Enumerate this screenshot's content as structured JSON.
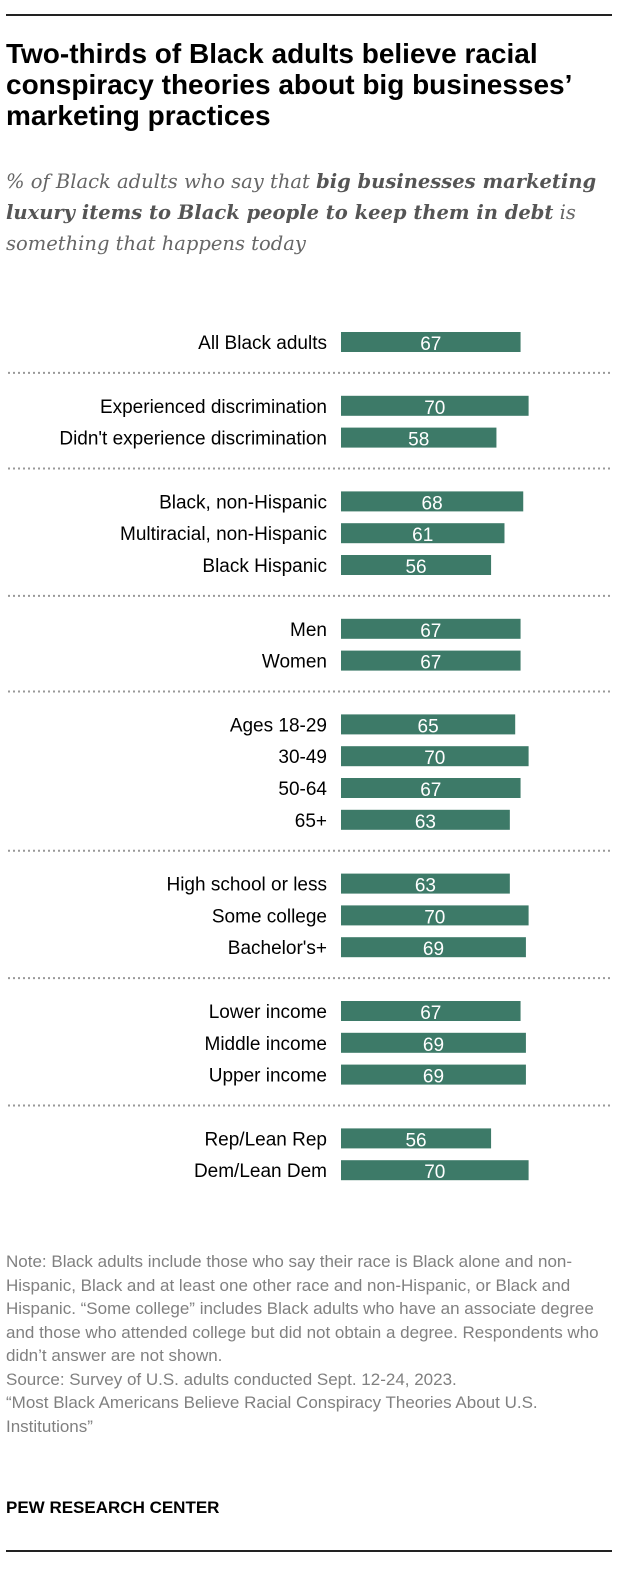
{
  "title": "Two-thirds of Black adults believe racial conspiracy theories about big businesses’ marketing practices",
  "subtitle": {
    "part1": "% of Black adults who say that ",
    "bold": "big businesses marketing luxury items to Black people to keep them in debt",
    "part2": " is something that happens today"
  },
  "colors": {
    "bar": "#3d7a68",
    "divider": "#999999"
  },
  "chart_data": {
    "type": "bar",
    "orientation": "horizontal",
    "xlim": [
      0,
      100
    ],
    "groups": [
      {
        "rows": [
          {
            "label": "All Black adults",
            "value": 67
          }
        ]
      },
      {
        "rows": [
          {
            "label": "Experienced discrimination",
            "value": 70
          },
          {
            "label": "Didn't experience discrimination",
            "value": 58
          }
        ]
      },
      {
        "rows": [
          {
            "label": "Black, non-Hispanic",
            "value": 68
          },
          {
            "label": "Multiracial, non-Hispanic",
            "value": 61
          },
          {
            "label": "Black Hispanic",
            "value": 56
          }
        ]
      },
      {
        "rows": [
          {
            "label": "Men",
            "value": 67
          },
          {
            "label": "Women",
            "value": 67
          }
        ]
      },
      {
        "rows": [
          {
            "label": "Ages 18-29",
            "value": 65
          },
          {
            "label": "30-49",
            "value": 70
          },
          {
            "label": "50-64",
            "value": 67
          },
          {
            "label": "65+",
            "value": 63
          }
        ]
      },
      {
        "rows": [
          {
            "label": "High school or less",
            "value": 63
          },
          {
            "label": "Some college",
            "value": 70
          },
          {
            "label": "Bachelor's+",
            "value": 69
          }
        ]
      },
      {
        "rows": [
          {
            "label": "Lower income",
            "value": 67
          },
          {
            "label": "Middle income",
            "value": 69
          },
          {
            "label": "Upper income",
            "value": 69
          }
        ]
      },
      {
        "rows": [
          {
            "label": "Rep/Lean Rep",
            "value": 56
          },
          {
            "label": "Dem/Lean Dem",
            "value": 70
          }
        ]
      }
    ]
  },
  "notes": {
    "note": "Note: Black adults include those who say their race is Black alone and non-Hispanic, Black and at least one other race and non-Hispanic, or Black and Hispanic. “Some college” includes Black adults who have an associate degree and those who attended college but did not obtain a degree. Respondents who didn’t answer are not shown.",
    "source": "Source: Survey of U.S. adults conducted Sept. 12-24, 2023.",
    "report": "“Most Black Americans Believe Racial Conspiracy Theories About U.S. Institutions”"
  },
  "brand": "PEW RESEARCH CENTER"
}
